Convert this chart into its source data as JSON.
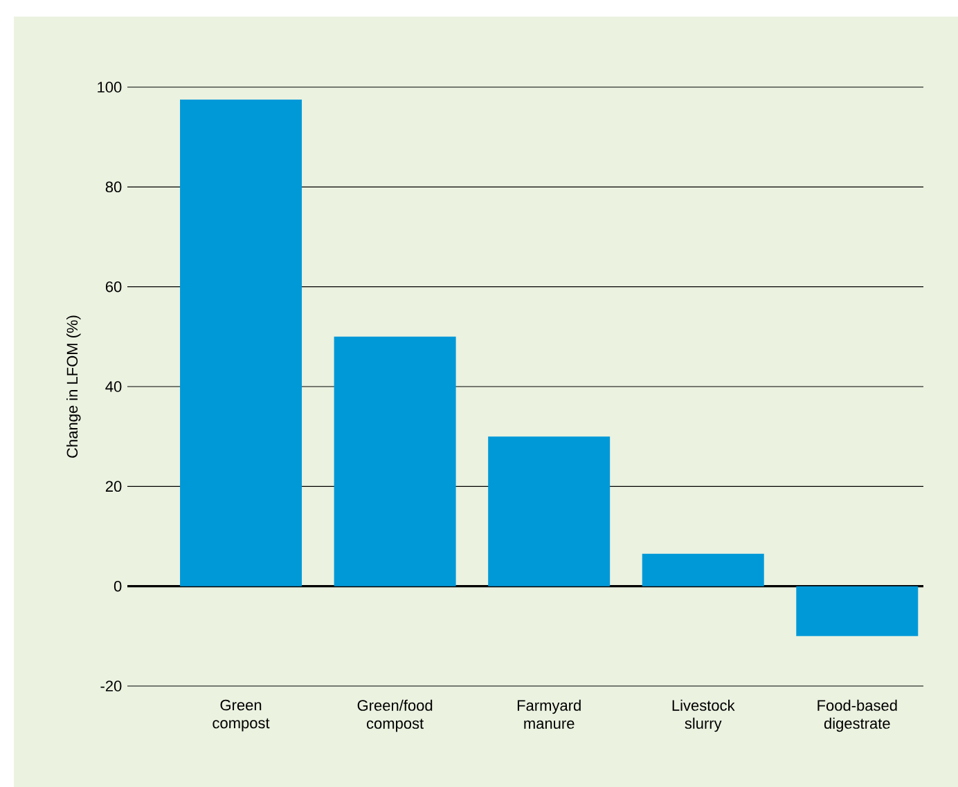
{
  "chart_data": {
    "type": "bar",
    "ylabel": "Change in LFOM (%)",
    "categories": [
      "Green compost",
      "Green/food compost",
      "Farmyard manure",
      "Livestock slurry",
      "Food-based digestrate"
    ],
    "values": [
      97.5,
      50,
      30,
      6.5,
      -10
    ],
    "color": "#0099d8",
    "ylim": [
      -20,
      100
    ],
    "yticks": [
      -20,
      0,
      20,
      40,
      60,
      80,
      100
    ],
    "grid": "y"
  }
}
